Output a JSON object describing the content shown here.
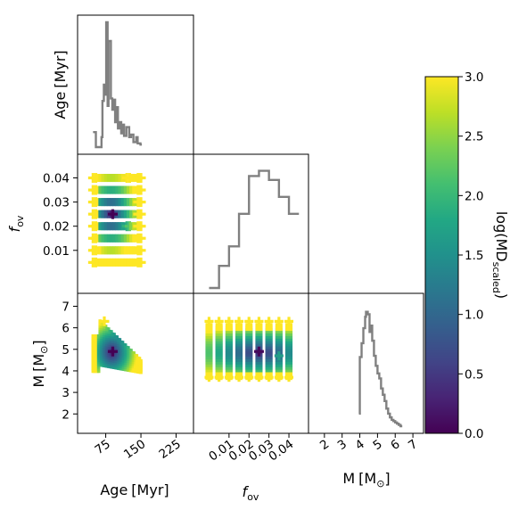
{
  "chart_data": {
    "type": "corner_plot",
    "variables": [
      {
        "key": "age",
        "label_main": "Age",
        "label_unit": "[Myr]"
      },
      {
        "key": "fov",
        "label_main": "f",
        "label_sub": "ov"
      },
      {
        "key": "mass",
        "label_main": "M",
        "label_unit_main": "[M",
        "label_unit_sub": "⊙",
        "label_unit_end": "]"
      }
    ],
    "x_ticks": {
      "age": [
        "75",
        "150",
        "225"
      ],
      "fov": [
        "0.01",
        "0.02",
        "0.03",
        "0.04"
      ],
      "mass": [
        "2",
        "3",
        "4",
        "5",
        "6",
        "7"
      ]
    },
    "y_ticks": {
      "fov": [
        "0.01",
        "0.02",
        "0.03",
        "0.04"
      ],
      "mass": [
        "2",
        "3",
        "4",
        "5",
        "6",
        "7"
      ]
    },
    "age_xlim": [
      15,
      262
    ],
    "fov_xlim": [
      -0.0078,
      0.0498
    ],
    "mass_xlim": [
      1.1,
      7.6
    ],
    "fov_ylim": [
      -0.0078,
      0.0498
    ],
    "mass_ylim": [
      1.1,
      7.6
    ],
    "age_hist": {
      "steps": [
        [
          48,
          0.12
        ],
        [
          54,
          0.0
        ],
        [
          66,
          0.08
        ],
        [
          68,
          0.37
        ],
        [
          71,
          0.5
        ],
        [
          74,
          0.42
        ],
        [
          76,
          1.0
        ],
        [
          79,
          0.33
        ],
        [
          81,
          0.85
        ],
        [
          86,
          0.39
        ],
        [
          89,
          0.3
        ],
        [
          91,
          0.38
        ],
        [
          95,
          0.2
        ],
        [
          98,
          0.32
        ],
        [
          101,
          0.15
        ],
        [
          104,
          0.2
        ],
        [
          108,
          0.11
        ],
        [
          111,
          0.18
        ],
        [
          114,
          0.09
        ],
        [
          119,
          0.16
        ],
        [
          125,
          0.08
        ],
        [
          129,
          0.1
        ],
        [
          134,
          0.04
        ],
        [
          140,
          0.08
        ],
        [
          143,
          0.03
        ],
        [
          149,
          0.02
        ]
      ],
      "end_x": 152
    },
    "fov_hist": {
      "edges": [
        0.0,
        0.005,
        0.01,
        0.015,
        0.02,
        0.025,
        0.03,
        0.035,
        0.04,
        0.045
      ],
      "values": [
        0.0,
        0.17,
        0.32,
        0.57,
        0.86,
        0.9,
        0.83,
        0.7,
        0.57
      ]
    },
    "mass_hist": {
      "x": [
        3.95,
        4.0,
        4.1,
        4.2,
        4.3,
        4.35,
        4.45,
        4.55,
        4.6,
        4.7,
        4.8,
        4.9,
        5.0,
        5.1,
        5.2,
        5.3,
        5.4,
        5.5,
        5.6,
        5.7,
        5.8,
        5.9,
        6.0,
        6.1,
        6.2,
        6.3
      ],
      "values": [
        0.1,
        0.55,
        0.66,
        0.78,
        0.87,
        0.91,
        0.89,
        0.75,
        0.8,
        0.68,
        0.56,
        0.48,
        0.42,
        0.38,
        0.3,
        0.25,
        0.2,
        0.14,
        0.1,
        0.07,
        0.05,
        0.04,
        0.03,
        0.02,
        0.01,
        0.0
      ]
    },
    "best_fit": {
      "age": 90,
      "fov": 0.025,
      "mass": 4.9
    },
    "age_fov_grid": {
      "age_min": 48,
      "age_max": 150,
      "fov_rows": [
        0.005,
        0.01,
        0.015,
        0.02,
        0.025,
        0.03,
        0.035,
        0.04
      ]
    },
    "fov_mass_grid": {
      "fov_cols": [
        0.0,
        0.005,
        0.01,
        0.015,
        0.02,
        0.025,
        0.03,
        0.035,
        0.04
      ],
      "mass_min": 3.7,
      "mass_max": 6.2
    },
    "colorbar": {
      "label_main": "log(MD",
      "label_sub": "scaled",
      "label_end": ")",
      "min": 0.0,
      "max": 3.0,
      "ticks": [
        "0.0",
        "0.5",
        "1.0",
        "1.5",
        "2.0",
        "2.5",
        "3.0"
      ],
      "colormap": "viridis"
    }
  }
}
